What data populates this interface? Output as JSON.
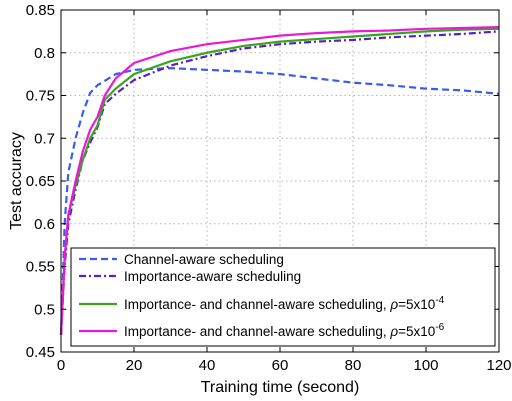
{
  "chart_data": {
    "type": "line",
    "title": "",
    "xlabel": "Training time (second)",
    "ylabel": "Test accuracy",
    "xlim": [
      0,
      120
    ],
    "ylim": [
      0.45,
      0.85
    ],
    "xticks": [
      0,
      20,
      40,
      60,
      80,
      100,
      120
    ],
    "yticks": [
      0.45,
      0.5,
      0.55,
      0.6,
      0.65,
      0.7,
      0.75,
      0.8,
      0.85
    ],
    "xtick_labels": [
      "0",
      "20",
      "40",
      "60",
      "80",
      "100",
      "120"
    ],
    "ytick_labels": [
      "0.45",
      "0.5",
      "0.55",
      "0.6",
      "0.65",
      "0.7",
      "0.75",
      "0.8",
      "0.85"
    ],
    "grid": true,
    "legend_position": "bottom-left",
    "series": [
      {
        "name": "Channel-aware scheduling",
        "legend_main": "Channel-aware scheduling",
        "legend_exp": "",
        "color": "#3b5bea",
        "style": "dashed",
        "x": [
          0,
          1,
          2,
          4,
          6,
          8,
          10,
          15,
          20,
          30,
          40,
          50,
          60,
          70,
          80,
          90,
          100,
          110,
          120
        ],
        "y": [
          0.47,
          0.6,
          0.66,
          0.7,
          0.73,
          0.753,
          0.762,
          0.775,
          0.78,
          0.782,
          0.78,
          0.778,
          0.775,
          0.77,
          0.765,
          0.762,
          0.758,
          0.756,
          0.752
        ]
      },
      {
        "name": "Importance-aware scheduling",
        "legend_main": "Importance-aware scheduling",
        "legend_exp": "",
        "color": "#5a1fc4",
        "style": "dashdot",
        "x": [
          0,
          1,
          2,
          4,
          6,
          8,
          10,
          12,
          15,
          20,
          30,
          40,
          50,
          60,
          70,
          80,
          90,
          100,
          110,
          120
        ],
        "y": [
          0.47,
          0.55,
          0.6,
          0.64,
          0.675,
          0.695,
          0.713,
          0.74,
          0.752,
          0.768,
          0.785,
          0.796,
          0.805,
          0.81,
          0.813,
          0.815,
          0.818,
          0.82,
          0.822,
          0.825
        ]
      },
      {
        "name": "Importance- and channel-aware scheduling, ρ=5x10-4",
        "legend_main": "Importance- and channel-aware scheduling, ",
        "legend_exp": "-4",
        "color": "#3aa51c",
        "style": "solid",
        "x": [
          0,
          1,
          2,
          4,
          6,
          8,
          10,
          12,
          15,
          20,
          30,
          40,
          50,
          60,
          70,
          80,
          90,
          100,
          110,
          120
        ],
        "y": [
          0.47,
          0.56,
          0.61,
          0.645,
          0.675,
          0.7,
          0.715,
          0.745,
          0.758,
          0.775,
          0.79,
          0.8,
          0.808,
          0.813,
          0.816,
          0.819,
          0.822,
          0.825,
          0.827,
          0.828
        ]
      },
      {
        "name": "Importance- and channel-aware scheduling, ρ=5x10-6",
        "legend_main": "Importance- and channel-aware scheduling, ",
        "legend_exp": "-6",
        "color": "#e81ad8",
        "style": "solid",
        "x": [
          0,
          1,
          2,
          4,
          6,
          8,
          10,
          12,
          15,
          20,
          30,
          40,
          50,
          60,
          70,
          80,
          90,
          100,
          110,
          120
        ],
        "y": [
          0.47,
          0.56,
          0.61,
          0.65,
          0.685,
          0.71,
          0.725,
          0.75,
          0.77,
          0.788,
          0.802,
          0.81,
          0.815,
          0.82,
          0.823,
          0.825,
          0.826,
          0.828,
          0.829,
          0.83
        ]
      }
    ]
  }
}
